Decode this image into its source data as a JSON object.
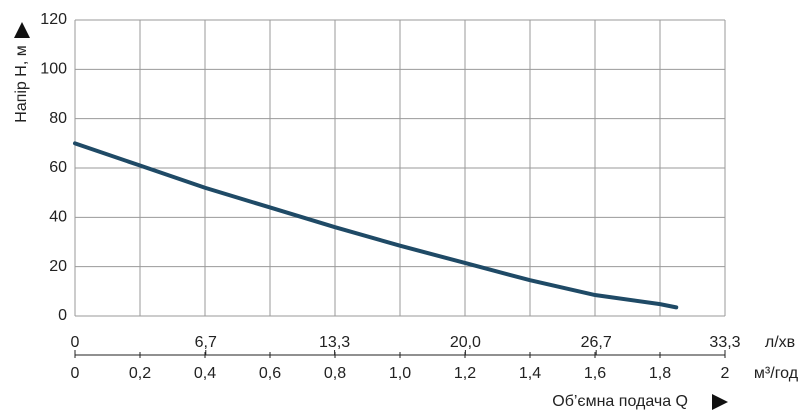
{
  "chart_data": {
    "type": "line",
    "ylabel": "Напір H, м",
    "xlabel": "Об’ємна подача Q",
    "xunit": "м³/год",
    "x2unit": "л/хв",
    "x": [
      0,
      0.2,
      0.4,
      0.6,
      0.8,
      1.0,
      1.2,
      1.4,
      1.6,
      1.8,
      1.85
    ],
    "series": [
      {
        "color": "#1f4a66",
        "values": [
          70,
          61,
          52,
          44,
          36,
          28.5,
          21.5,
          14.5,
          8.5,
          4.8,
          3.5
        ]
      }
    ],
    "xlim": [
      0,
      2
    ],
    "ylim": [
      0,
      120
    ],
    "xticks": [
      0,
      {
        "value": 0.2,
        "label": "0,2"
      },
      {
        "value": 0.4,
        "label": "0,4"
      },
      {
        "value": 0.6,
        "label": "0,6"
      },
      {
        "value": 0.8,
        "label": "0,8"
      },
      {
        "value": 1,
        "label": "1,0"
      },
      {
        "value": 1.2,
        "label": "1,2"
      },
      {
        "value": 1.4,
        "label": "1,4"
      },
      {
        "value": 1.6,
        "label": "1,6"
      },
      {
        "value": 1.8,
        "label": "1,8"
      },
      2
    ],
    "yticks": [
      0,
      20,
      40,
      60,
      80,
      100,
      120
    ],
    "x2lim": [
      0,
      33.3
    ],
    "x2ticks": [
      0,
      {
        "value": 6.7,
        "label": "6,7"
      },
      {
        "value": 13.3,
        "label": "13,3"
      },
      {
        "value": 20,
        "label": "20,0"
      },
      {
        "value": 26.7,
        "label": "26,7"
      },
      {
        "value": 33.3,
        "label": "33,3"
      }
    ],
    "grid": true
  }
}
